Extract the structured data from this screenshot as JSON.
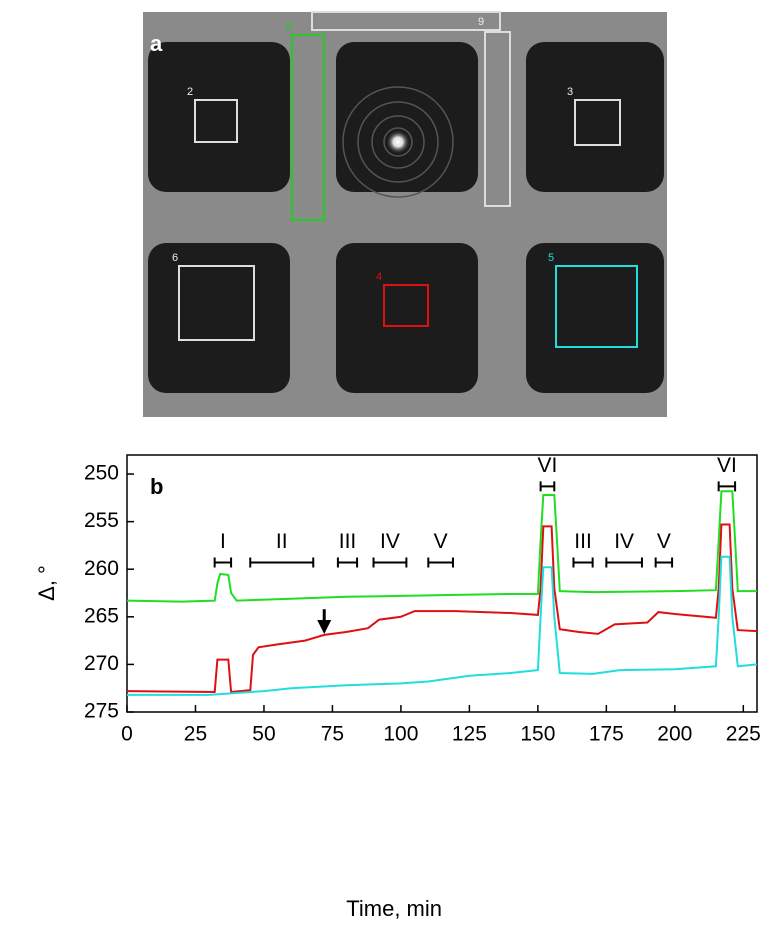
{
  "panel_a": {
    "label": "a",
    "roi_labels": [
      "2",
      "3",
      "8",
      "9",
      "6",
      "4",
      "5"
    ]
  },
  "chart_data": {
    "type": "line",
    "label": "b",
    "xlabel": "Time, min",
    "ylabel": "Δ, °",
    "xlim": [
      0,
      230
    ],
    "ylim": [
      275,
      248
    ],
    "xticks": [
      0,
      25,
      50,
      75,
      100,
      125,
      150,
      175,
      200,
      225
    ],
    "yticks": [
      250,
      255,
      260,
      265,
      270,
      275
    ],
    "series": [
      {
        "color": "#22dd22",
        "x": [
          0,
          20,
          32,
          33,
          34,
          37,
          38,
          40,
          60,
          80,
          100,
          120,
          140,
          150,
          151,
          152,
          156,
          157,
          158,
          170,
          200,
          215,
          216,
          217,
          221,
          222,
          223,
          230
        ],
        "values": [
          263.3,
          263.4,
          263.3,
          261.5,
          260.5,
          260.6,
          262.5,
          263.3,
          263.1,
          262.9,
          262.8,
          262.7,
          262.6,
          262.6,
          257,
          252.2,
          252.2,
          257,
          262.3,
          262.4,
          262.3,
          262.2,
          257,
          251.8,
          251.8,
          257,
          262.3,
          262.3
        ]
      },
      {
        "color": "#dd1111",
        "x": [
          0,
          32,
          33,
          37,
          38,
          45,
          46,
          48,
          55,
          65,
          72,
          80,
          88,
          92,
          100,
          105,
          120,
          140,
          150,
          151,
          152,
          155,
          156,
          158,
          165,
          172,
          178,
          190,
          194,
          200,
          215,
          216,
          217,
          220,
          221,
          223,
          230
        ],
        "values": [
          272.8,
          272.9,
          269.5,
          269.5,
          272.9,
          272.7,
          269,
          268.2,
          267.9,
          267.5,
          266.9,
          266.6,
          266.2,
          265.3,
          265,
          264.4,
          264.4,
          264.6,
          264.8,
          262,
          255.5,
          255.5,
          262,
          266.3,
          266.6,
          266.8,
          265.8,
          265.6,
          264.5,
          264.7,
          265.1,
          262,
          255.3,
          255.3,
          262,
          266.4,
          266.5
        ]
      },
      {
        "color": "#22dddd",
        "x": [
          0,
          30,
          40,
          50,
          60,
          80,
          100,
          110,
          125,
          140,
          150,
          151,
          152,
          155,
          156,
          158,
          170,
          180,
          200,
          215,
          216,
          217,
          220,
          221,
          223,
          230
        ],
        "values": [
          273.2,
          273.2,
          273,
          272.8,
          272.5,
          272.2,
          272,
          271.8,
          271.2,
          270.9,
          270.6,
          265,
          259.8,
          259.8,
          265,
          270.9,
          271,
          270.6,
          270.5,
          270.2,
          265,
          258.7,
          258.7,
          265,
          270.2,
          270
        ]
      }
    ],
    "intervals": [
      {
        "label": "I",
        "x": [
          32,
          38
        ],
        "y": 259.3
      },
      {
        "label": "II",
        "x": [
          45,
          68
        ],
        "y": 259.3
      },
      {
        "label": "III",
        "x": [
          77,
          84
        ],
        "y": 259.3
      },
      {
        "label": "IV",
        "x": [
          90,
          102
        ],
        "y": 259.3
      },
      {
        "label": "V",
        "x": [
          110,
          119
        ],
        "y": 259.3
      },
      {
        "label": "VI",
        "x": [
          151,
          156
        ],
        "y": 251.3
      },
      {
        "label": "III",
        "x": [
          163,
          170
        ],
        "y": 259.3
      },
      {
        "label": "IV",
        "x": [
          175,
          188
        ],
        "y": 259.3
      },
      {
        "label": "V",
        "x": [
          193,
          199
        ],
        "y": 259.3
      },
      {
        "label": "VI",
        "x": [
          216,
          222
        ],
        "y": 251.3
      }
    ],
    "arrow": {
      "x": 72,
      "y": [
        264.2,
        266.8
      ]
    }
  }
}
